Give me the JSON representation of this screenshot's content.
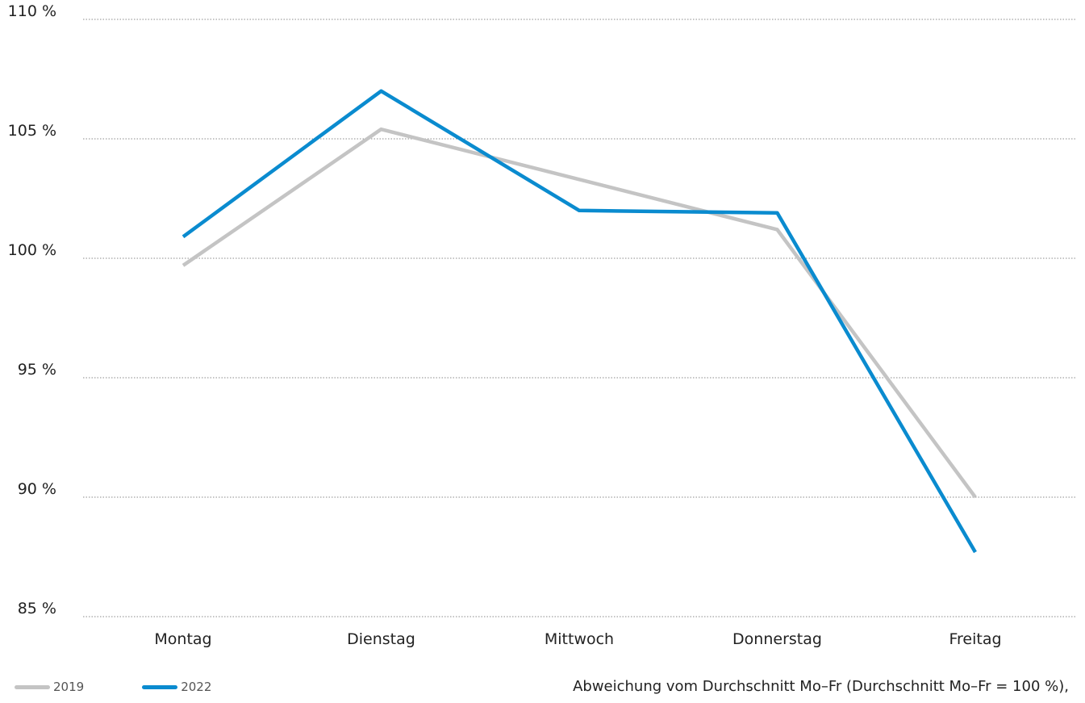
{
  "chart_data": {
    "type": "line",
    "categories": [
      "Montag",
      "Dienstag",
      "Mittwoch",
      "Donnerstag",
      "Freitag"
    ],
    "series": [
      {
        "name": "2019",
        "color": "#c4c4c4",
        "values": [
          99.7,
          105.4,
          103.3,
          101.2,
          90.0
        ]
      },
      {
        "name": "2022",
        "color": "#0a8bcf",
        "values": [
          100.9,
          107.0,
          102.0,
          101.9,
          87.7
        ]
      }
    ],
    "y_ticks": [
      85,
      90,
      95,
      100,
      105,
      110
    ],
    "y_tick_labels": [
      "85 %",
      "90 %",
      "95 %",
      "100 %",
      "105 %",
      "110 %"
    ],
    "ylim": [
      85,
      110
    ],
    "grid": true,
    "legend_position": "bottom-left",
    "note": "Abweichung vom Durchschnitt Mo–Fr (Durchschnitt Mo–Fr = 100 %),"
  }
}
